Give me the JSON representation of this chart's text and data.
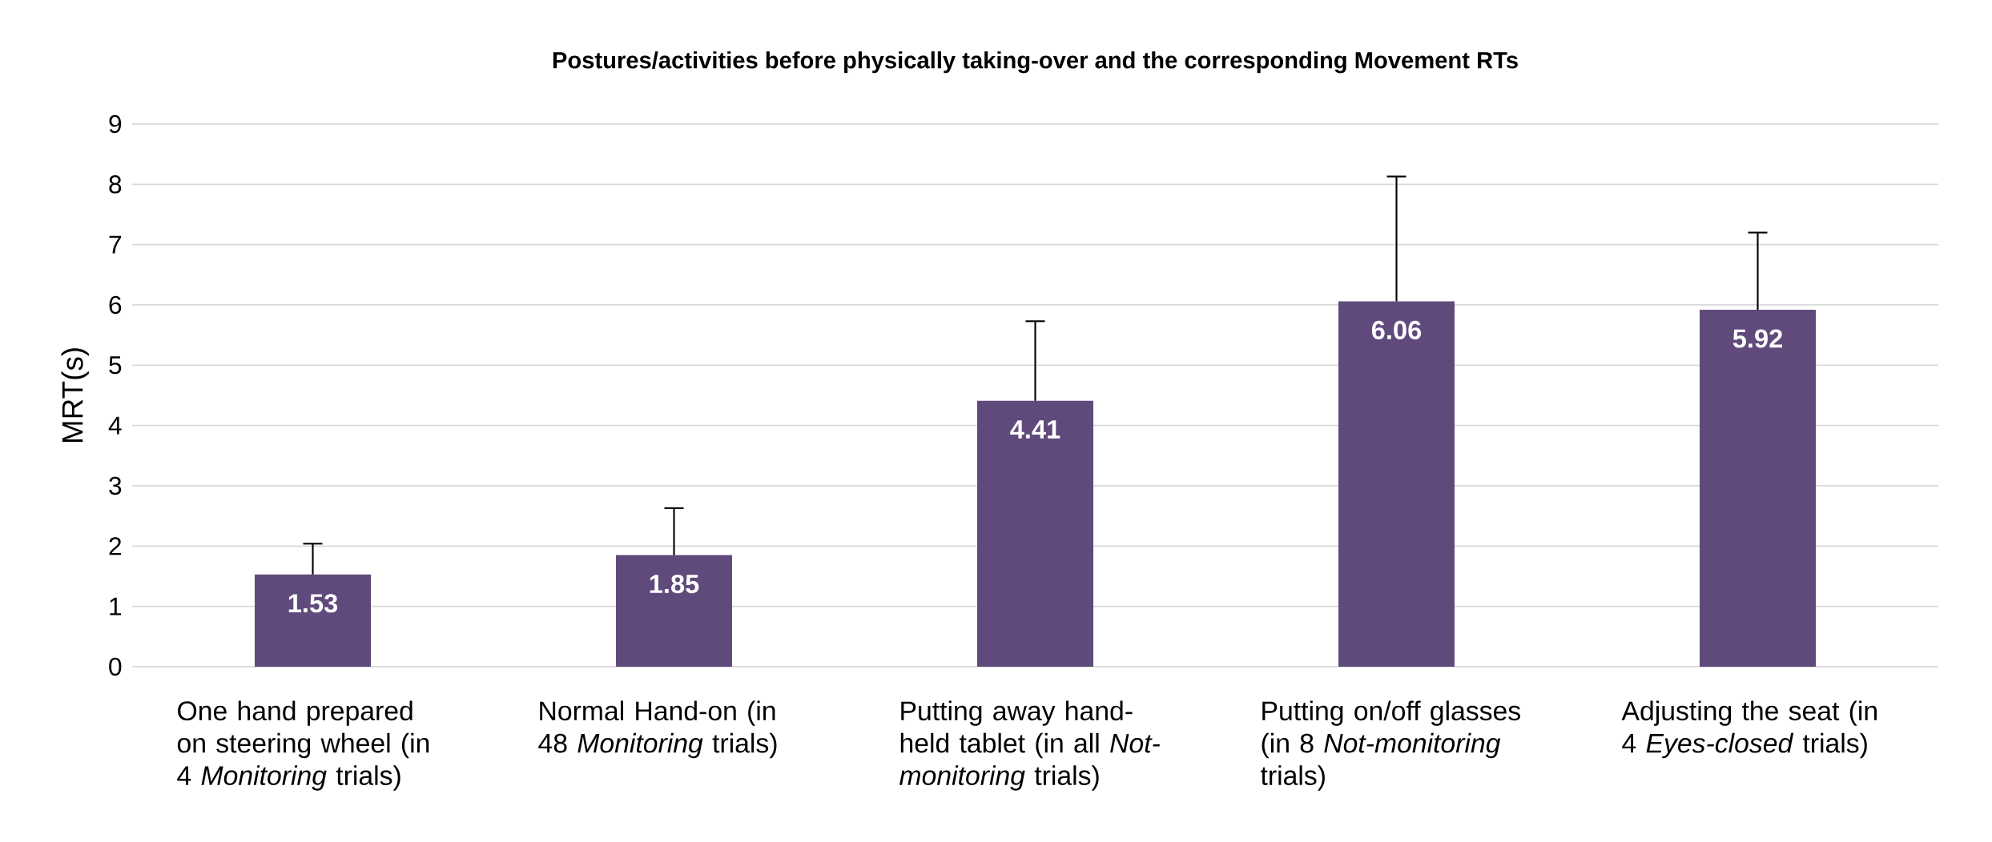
{
  "chart_data": {
    "type": "bar",
    "title": "Postures/activities before physically taking-over and the corresponding Movement RTs",
    "ylabel": "MRT(s)",
    "categories": [
      "One hand prepared on steering wheel (in 4 *Monitoring* trials)",
      "Normal Hand-on (in 48 *Monitoring* trials)",
      "Putting away hand-held tablet (in all *Not-monitoring* trials)",
      "Putting on/off glasses (in 8 *Not-monitoring* trials)",
      "Adjusting the seat (in 4 *Eyes-closed* trials)"
    ],
    "values": [
      1.53,
      1.85,
      4.41,
      6.06,
      5.92
    ],
    "errors": [
      [
        1.53,
        2.04
      ],
      [
        1.85,
        2.63
      ],
      [
        4.41,
        5.73
      ],
      [
        6.06,
        8.13
      ],
      [
        5.92,
        7.2
      ]
    ],
    "color": "#604a7b",
    "data_labels": true,
    "ylim": [
      0,
      9
    ],
    "yticks": [
      0,
      1,
      2,
      3,
      4,
      5,
      6,
      7,
      8,
      9
    ],
    "grid": "y"
  }
}
